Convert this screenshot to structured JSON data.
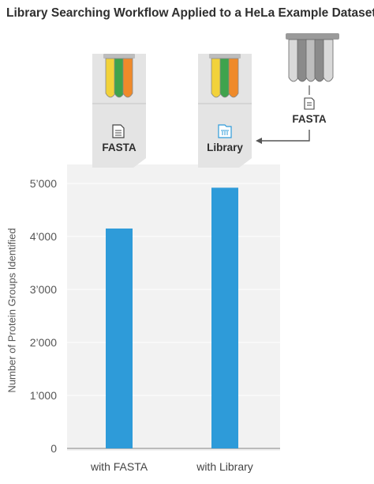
{
  "title": "Library Searching Workflow Applied to a HeLa Example Dataset",
  "workflow": {
    "fasta_callout_label": "FASTA",
    "library_callout_label": "Library",
    "external_source_label": "FASTA",
    "icons": [
      "tube-rack-color-icon",
      "tube-rack-gray-icon",
      "document-icon",
      "library-icon",
      "arrow-left-icon"
    ]
  },
  "colors": {
    "bar": "#2e9bd9",
    "panel": "#e4e4e4",
    "tube_yellow": "#f2d23a",
    "tube_green": "#3fa34d",
    "tube_orange": "#ef8a2a",
    "tube_gray": "#8a8a8a"
  },
  "chart_data": {
    "type": "bar",
    "title": "Library Searching Workflow Applied to a HeLa Example Dataset",
    "xlabel": "",
    "ylabel": "Number of Protein Groups Identified",
    "categories": [
      "with FASTA",
      "with Library"
    ],
    "values": [
      4150,
      4920
    ],
    "ylim": [
      0,
      5000
    ],
    "yticks": [
      0,
      1000,
      2000,
      3000,
      4000,
      5000
    ],
    "ytick_labels": [
      "0",
      "1’000",
      "2’000",
      "3’000",
      "4’000",
      "5’000"
    ],
    "grid": true,
    "legend": "none"
  }
}
